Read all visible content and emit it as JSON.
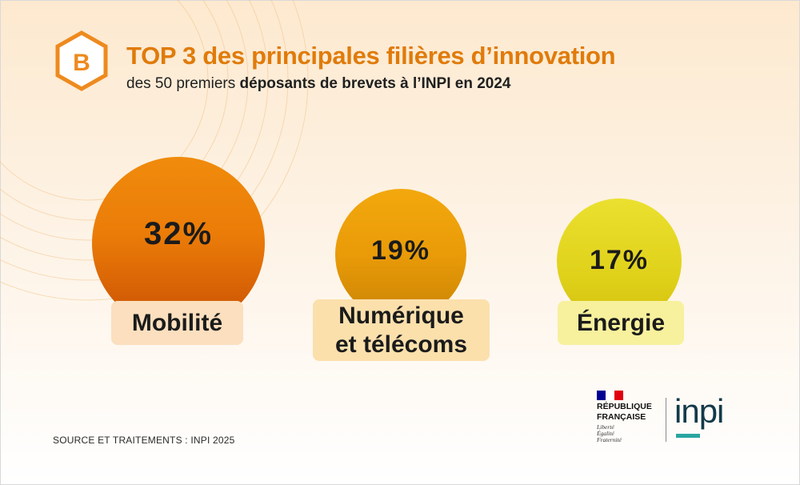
{
  "header": {
    "badge_letter": "B",
    "title": "TOP 3 des principales filières d’innovation",
    "subtitle_pre": "des 50 premiers ",
    "subtitle_bold": "déposants de brevets à l’INPI en 2024"
  },
  "chart_data": {
    "type": "bubble",
    "title": "TOP 3 des principales filières d’innovation",
    "subtitle": "des 50 premiers déposants de brevets à l’INPI en 2024",
    "unit": "%",
    "categories": [
      "Mobilité",
      "Numérique et télécoms",
      "Énergie"
    ],
    "values": [
      32,
      19,
      17
    ],
    "items": [
      {
        "value_label": "32%",
        "label": "Mobilité",
        "color": "#eb7c08"
      },
      {
        "value_label": "19%",
        "label_line1": "Numérique",
        "label_line2": "et télécoms",
        "color": "#e99b08"
      },
      {
        "value_label": "17%",
        "label": "Énergie",
        "color": "#e0d21b"
      }
    ]
  },
  "footer": {
    "source": "SOURCE ET TRAITEMENTS : INPI 2025",
    "republic_line1": "RÉPUBLIQUE",
    "republic_line2": "FRANÇAISE",
    "motto": [
      "Liberté",
      "Égalité",
      "Fraternité"
    ],
    "inpi_logo": "inpi"
  },
  "colors": {
    "accent": "#e07b0a",
    "teal": "#2aa5a0",
    "navy": "#123a4a"
  }
}
